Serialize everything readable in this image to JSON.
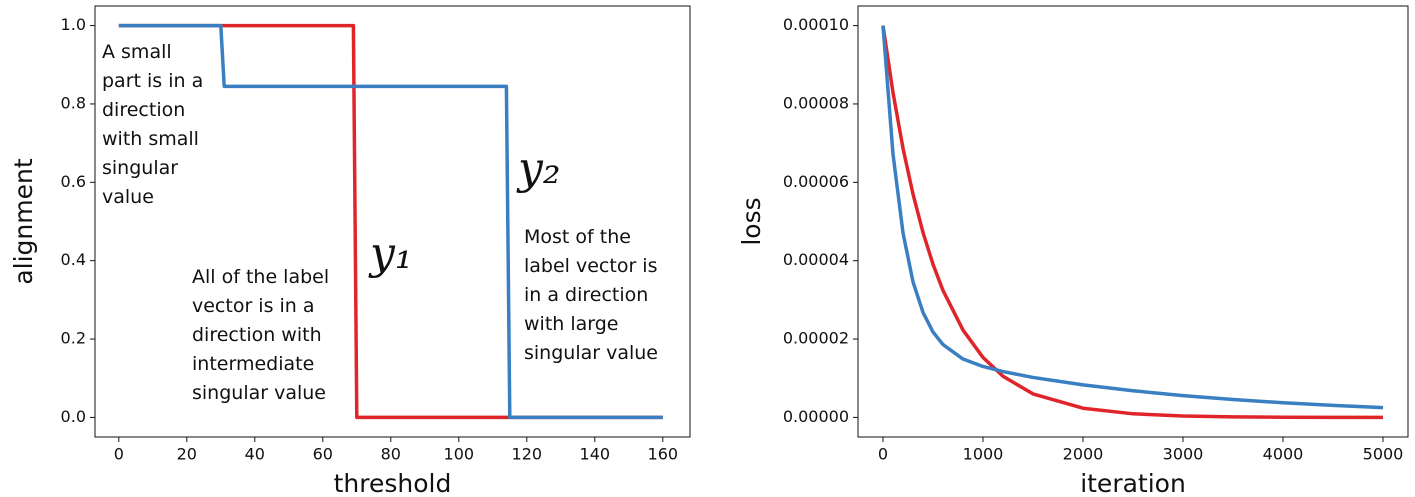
{
  "chart_data": [
    {
      "type": "line",
      "xlabel": "threshold",
      "ylabel": "alignment",
      "xlim": [
        -7,
        168
      ],
      "xticks": [
        0,
        20,
        40,
        60,
        80,
        100,
        120,
        140,
        160
      ],
      "ylim": [
        -0.05,
        1.05
      ],
      "yticks": [
        {
          "value": 0,
          "label": "0.0"
        },
        {
          "value": 0.2,
          "label": "0.2"
        },
        {
          "value": 0.4,
          "label": "0.4"
        },
        {
          "value": 0.6,
          "label": "0.6"
        },
        {
          "value": 0.8,
          "label": "0.8"
        },
        {
          "value": 1,
          "label": "1.0"
        }
      ],
      "series": [
        {
          "name": "y₁",
          "color": "#e0252a",
          "x": [
            0,
            69,
            70,
            160
          ],
          "values": [
            1,
            1,
            0,
            0
          ]
        },
        {
          "name": "y₂",
          "color": "#3a7fc1",
          "x": [
            0,
            30,
            31,
            114,
            115,
            160
          ],
          "values": [
            1,
            1,
            0.845,
            0.845,
            0,
            0
          ]
        }
      ],
      "annotations": [
        {
          "lines": [
            "A small",
            "part is in a",
            "direction",
            "with small",
            "singular",
            "value"
          ]
        },
        {
          "lines": [
            "All of the label",
            "vector is in a",
            "direction with",
            "intermediate",
            "singular value"
          ]
        },
        {
          "lines": [
            "Most of the",
            "label vector is",
            "in a direction",
            "with large",
            "singular value"
          ]
        }
      ]
    },
    {
      "type": "line",
      "xlabel": "iteration",
      "ylabel": "loss",
      "xlim": [
        -250,
        5250
      ],
      "xticks": [
        0,
        1000,
        2000,
        3000,
        4000,
        5000
      ],
      "ylim": [
        -5e-06,
        0.000105
      ],
      "yticks": [
        {
          "value": 0,
          "label": "0.00000"
        },
        {
          "value": 2e-05,
          "label": "0.00002"
        },
        {
          "value": 4e-05,
          "label": "0.00004"
        },
        {
          "value": 6e-05,
          "label": "0.00006"
        },
        {
          "value": 8e-05,
          "label": "0.00008"
        },
        {
          "value": 0.0001,
          "label": "0.00010"
        }
      ],
      "x": [
        0,
        100,
        200,
        300,
        400,
        500,
        600,
        800,
        1000,
        1200,
        1500,
        2000,
        2500,
        3000,
        3500,
        4000,
        4500,
        5000
      ],
      "series": [
        {
          "color": "#e0252a",
          "values": [
            0.0001,
            8.29e-05,
            6.87e-05,
            5.7e-05,
            4.72e-05,
            3.91e-05,
            3.24e-05,
            2.23e-05,
            1.53e-05,
            1.05e-05,
            6e-06,
            2.35e-06,
            9.2e-07,
            3.6e-07,
            1.4e-07,
            5.5e-08,
            2.1e-08,
            8e-09
          ]
        },
        {
          "color": "#3a7fc1",
          "values": [
            0.0001,
            6.72e-05,
            4.71e-05,
            3.46e-05,
            2.68e-05,
            2.18e-05,
            1.86e-05,
            1.49e-05,
            1.3e-05,
            1.17e-05,
            1.02e-05,
            8.31e-06,
            6.81e-06,
            5.57e-06,
            4.56e-06,
            3.74e-06,
            3.06e-06,
            2.5e-06
          ]
        }
      ]
    }
  ]
}
